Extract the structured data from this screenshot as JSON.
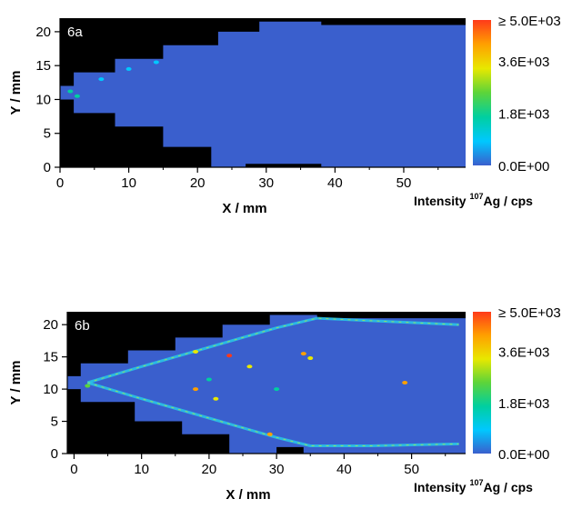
{
  "chart_data": [
    {
      "type": "heatmap",
      "panel_label": "6a",
      "xlabel": "X / mm",
      "ylabel": "Y / mm",
      "xlim": [
        0,
        59
      ],
      "ylim": [
        0,
        22
      ],
      "x_ticks": [
        0,
        10,
        20,
        30,
        40,
        50
      ],
      "y_ticks": [
        0,
        5,
        10,
        15,
        20
      ],
      "colorbar": {
        "title": "Intensity",
        "title_sup": "107",
        "title_suffix": "Ag / cps",
        "tick_labels": [
          "≥ 5.0E+03",
          "3.6E+03",
          "1.8E+03",
          "0.0E+00"
        ],
        "tick_values": [
          5000,
          3600,
          1800,
          0
        ],
        "colors": [
          "#ff3a1a",
          "#ffa000",
          "#e8e800",
          "#5cd43a",
          "#00cfa0",
          "#00c8ff",
          "#3a5fcd"
        ]
      },
      "background_color": "#000000",
      "sample_color": "#3a5fcd",
      "sample_outline": [
        [
          0,
          10
        ],
        [
          0,
          12
        ],
        [
          2,
          12
        ],
        [
          2,
          14
        ],
        [
          8,
          14
        ],
        [
          8,
          16
        ],
        [
          15,
          16
        ],
        [
          15,
          18
        ],
        [
          23,
          18
        ],
        [
          23,
          20
        ],
        [
          29,
          20
        ],
        [
          29,
          21.5
        ],
        [
          38,
          21.5
        ],
        [
          38,
          21
        ],
        [
          59,
          21
        ],
        [
          59,
          0
        ],
        [
          38,
          0
        ],
        [
          38,
          0.5
        ],
        [
          27,
          0.5
        ],
        [
          27,
          0
        ],
        [
          22,
          0
        ],
        [
          22,
          3
        ],
        [
          15,
          3
        ],
        [
          15,
          6
        ],
        [
          8,
          6
        ],
        [
          8,
          8
        ],
        [
          2,
          8
        ],
        [
          2,
          10
        ]
      ],
      "hotspots": [
        {
          "x": 2.5,
          "y": 10.5,
          "intensity": 2000
        },
        {
          "x": 1.5,
          "y": 11.2,
          "intensity": 1500
        },
        {
          "x": 6,
          "y": 13,
          "intensity": 1200
        },
        {
          "x": 10,
          "y": 14.5,
          "intensity": 1000
        },
        {
          "x": 14,
          "y": 15.5,
          "intensity": 900
        }
      ]
    },
    {
      "type": "heatmap",
      "panel_label": "6b",
      "xlabel": "X / mm",
      "ylabel": "Y / mm",
      "xlim": [
        -1,
        58
      ],
      "ylim": [
        0,
        22
      ],
      "x_ticks": [
        0,
        10,
        20,
        30,
        40,
        50
      ],
      "y_ticks": [
        0,
        5,
        10,
        15,
        20
      ],
      "colorbar": {
        "title": "Intensity",
        "title_sup": "107",
        "title_suffix": "Ag / cps",
        "tick_labels": [
          "≥ 5.0E+03",
          "3.6E+03",
          "1.8E+03",
          "0.0E+00"
        ],
        "tick_values": [
          5000,
          3600,
          1800,
          0
        ],
        "colors": [
          "#ff3a1a",
          "#ffa000",
          "#e8e800",
          "#5cd43a",
          "#00cfa0",
          "#00c8ff",
          "#3a5fcd"
        ]
      },
      "background_color": "#000000",
      "sample_color": "#3a5fcd",
      "sample_outline": [
        [
          -1,
          10
        ],
        [
          -1,
          12
        ],
        [
          1,
          12
        ],
        [
          1,
          14
        ],
        [
          8,
          14
        ],
        [
          8,
          16
        ],
        [
          15,
          16
        ],
        [
          15,
          18
        ],
        [
          22,
          18
        ],
        [
          22,
          20
        ],
        [
          29,
          20
        ],
        [
          29,
          21.5
        ],
        [
          36,
          21.5
        ],
        [
          36,
          21
        ],
        [
          58,
          21
        ],
        [
          58,
          0
        ],
        [
          34,
          0
        ],
        [
          34,
          1
        ],
        [
          30,
          1
        ],
        [
          30,
          0
        ],
        [
          23,
          0
        ],
        [
          23,
          3
        ],
        [
          16,
          3
        ],
        [
          16,
          5
        ],
        [
          9,
          5
        ],
        [
          9,
          8
        ],
        [
          1,
          8
        ],
        [
          1,
          10
        ]
      ],
      "rim_upper": [
        [
          2,
          11
        ],
        [
          10,
          13.5
        ],
        [
          20,
          16.5
        ],
        [
          30,
          19.5
        ],
        [
          36,
          21
        ],
        [
          44,
          20.6
        ],
        [
          57,
          20
        ]
      ],
      "rim_lower": [
        [
          2,
          11
        ],
        [
          10,
          8.5
        ],
        [
          20,
          5.5
        ],
        [
          30,
          2.5
        ],
        [
          35,
          1.2
        ],
        [
          44,
          1.2
        ],
        [
          57,
          1.5
        ]
      ],
      "hotspots": [
        {
          "x": 2,
          "y": 10.5,
          "intensity": 2500
        },
        {
          "x": 23,
          "y": 15.2,
          "intensity": 5000
        },
        {
          "x": 26,
          "y": 13.5,
          "intensity": 3000
        },
        {
          "x": 18,
          "y": 10,
          "intensity": 4000
        },
        {
          "x": 21,
          "y": 8.5,
          "intensity": 3600
        },
        {
          "x": 34,
          "y": 15.5,
          "intensity": 4200
        },
        {
          "x": 35,
          "y": 14.8,
          "intensity": 3600
        },
        {
          "x": 49,
          "y": 11,
          "intensity": 4500
        },
        {
          "x": 29,
          "y": 3,
          "intensity": 3800
        },
        {
          "x": 18,
          "y": 15.8,
          "intensity": 3000
        },
        {
          "x": 30,
          "y": 10,
          "intensity": 1800
        },
        {
          "x": 20,
          "y": 11.5,
          "intensity": 1800
        }
      ]
    }
  ]
}
